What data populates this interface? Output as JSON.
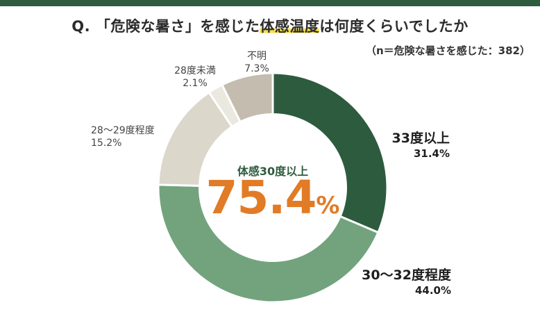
{
  "header": {
    "title_before": "Q. 「危険な暑さ」を感じた",
    "title_highlight": "体感温度",
    "title_after": "は何度くらいでしたか",
    "note": "（n＝危険な暑さを感じた：382）"
  },
  "center": {
    "label": "体感30度以上",
    "value": "75.4",
    "unit": "%"
  },
  "colors": {
    "accent": "#e17b26",
    "topbar": "#2f5b3f",
    "highlight": "#f4e04d"
  },
  "chart_data": {
    "type": "pie",
    "donut": true,
    "start": "12 o'clock, clockwise",
    "slices": [
      {
        "name": "33度以上",
        "value": 31.4,
        "display": "31.4%",
        "color": "#2d5b3e"
      },
      {
        "name": "30〜32度程度",
        "value": 44.0,
        "display": "44.0%",
        "color": "#72a37d"
      },
      {
        "name": "28〜29度程度",
        "value": 15.2,
        "display": "15.2%",
        "color": "#dcd7cb"
      },
      {
        "name": "28度未満",
        "value": 2.1,
        "display": "2.1%",
        "color": "#ebe8df"
      },
      {
        "name": "不明",
        "value": 7.3,
        "display": "7.3%",
        "color": "#c4bcae"
      }
    ]
  }
}
